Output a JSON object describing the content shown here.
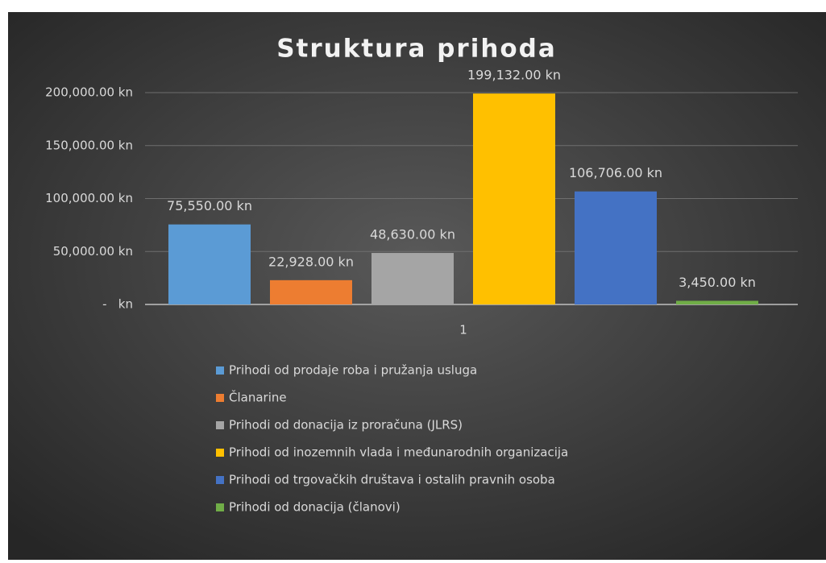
{
  "chart_data": {
    "type": "bar",
    "title": "Struktura prihoda",
    "categories": [
      "1"
    ],
    "series": [
      {
        "name": "Prihodi od prodaje roba i pružanja usluga",
        "color": "#5b9bd5",
        "values": [
          75550
        ],
        "value_labels": [
          "75,550.00 kn"
        ]
      },
      {
        "name": "Članarine",
        "color": "#ed7d31",
        "values": [
          22928
        ],
        "value_labels": [
          "22,928.00 kn"
        ]
      },
      {
        "name": "Prihodi od donacija iz proračuna (JLRS)",
        "color": "#a5a5a5",
        "values": [
          48630
        ],
        "value_labels": [
          "48,630.00 kn"
        ]
      },
      {
        "name": "Prihodi od inozemnih vlada i međunarodnih organizacija",
        "color": "#ffc000",
        "values": [
          199132
        ],
        "value_labels": [
          "199,132.00 kn"
        ]
      },
      {
        "name": "Prihodi od trgovačkih društava i ostalih pravnih osoba",
        "color": "#4472c4",
        "values": [
          106706
        ],
        "value_labels": [
          "106,706.00 kn"
        ]
      },
      {
        "name": "Prihodi od donacija (članovi)",
        "color": "#70ad47",
        "values": [
          3450
        ],
        "value_labels": [
          "3,450.00 kn"
        ]
      }
    ],
    "ylim": [
      0,
      200000
    ],
    "yticks": [
      {
        "value": 0,
        "label": "-   kn"
      },
      {
        "value": 50000,
        "label": "50,000.00 kn"
      },
      {
        "value": 100000,
        "label": "100,000.00 kn"
      },
      {
        "value": 150000,
        "label": "150,000.00 kn"
      },
      {
        "value": 200000,
        "label": "200,000.00 kn"
      }
    ],
    "grid": true,
    "legend": "bottom"
  }
}
